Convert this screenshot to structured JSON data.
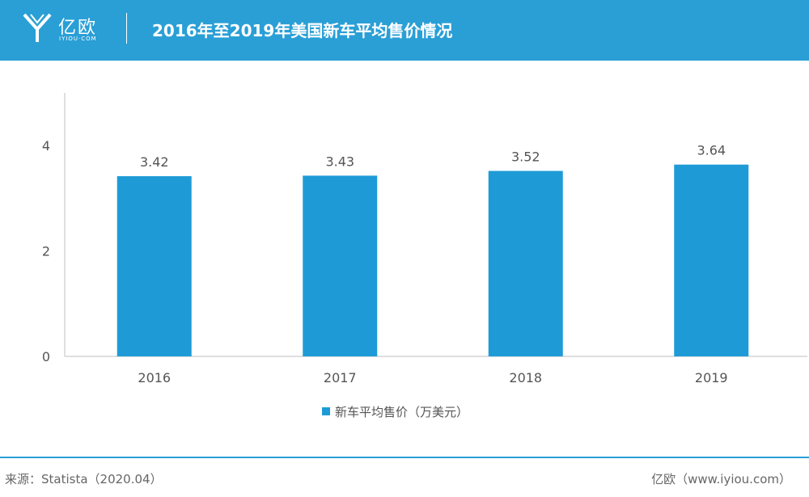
{
  "header": {
    "logo_text": "亿欧",
    "logo_sub": "IYIOU·COM",
    "title": "2016年至2019年美国新车平均售价情况"
  },
  "colors": {
    "brand": "#2a9fd6",
    "bar": "#1e9bd7",
    "axis": "#bfbfbf",
    "text": "#555555"
  },
  "chart_data": {
    "type": "bar",
    "categories": [
      "2016",
      "2017",
      "2018",
      "2019"
    ],
    "series": [
      {
        "name": "新车平均售价（万美元）",
        "values": [
          3.42,
          3.43,
          3.52,
          3.64
        ]
      }
    ],
    "data_labels": [
      "3.42",
      "3.43",
      "3.52",
      "3.64"
    ],
    "yticks": [
      0,
      2,
      4
    ],
    "ylim": [
      0,
      5
    ],
    "grid": false,
    "legend_position": "bottom"
  },
  "footer": {
    "source": "来源：Statista（2020.04）",
    "credit": "亿欧（www.iyiou.com）"
  }
}
